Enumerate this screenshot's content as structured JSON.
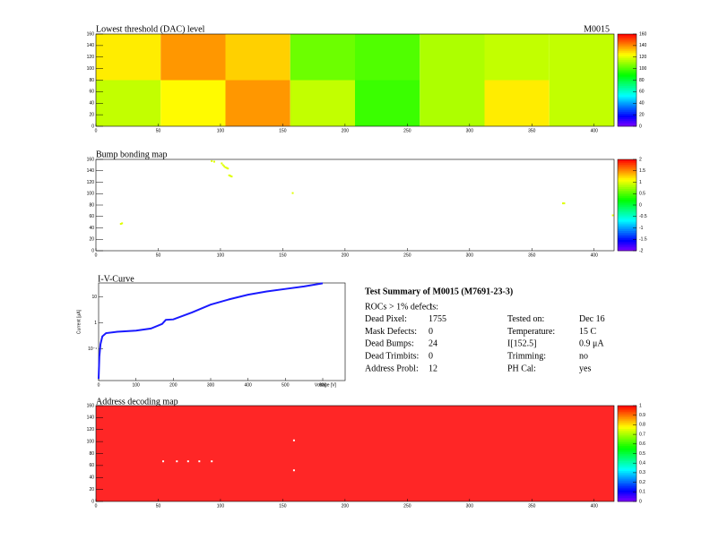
{
  "threshold_map": {
    "title": "Lowest threshold (DAC) level",
    "module": "M0015",
    "xlim": [
      0,
      416
    ],
    "xticks": [
      0,
      50,
      100,
      150,
      200,
      250,
      300,
      350,
      400
    ],
    "ylim": [
      0,
      160
    ],
    "yticks": [
      0,
      20,
      40,
      60,
      80,
      100,
      120,
      140,
      160
    ],
    "zlim": [
      0,
      160
    ],
    "zticks": [
      0,
      20,
      40,
      60,
      80,
      100,
      120,
      140,
      160
    ],
    "roc_values": [
      [
        127,
        139,
        131,
        104,
        100,
        113,
        116,
        116
      ],
      [
        116,
        125,
        139,
        116,
        97,
        113,
        127,
        116
      ]
    ]
  },
  "bump_map": {
    "title": "Bump bonding map",
    "xlim": [
      0,
      416
    ],
    "xticks": [
      0,
      50,
      100,
      150,
      200,
      250,
      300,
      350,
      400
    ],
    "ylim": [
      0,
      160
    ],
    "yticks": [
      0,
      20,
      40,
      60,
      80,
      100,
      120,
      140,
      160
    ],
    "zlim": [
      -2,
      2
    ],
    "zticks": [
      -2,
      -1.5,
      -1,
      -0.5,
      0,
      0.5,
      1,
      1.5,
      2
    ],
    "points": [
      {
        "x": 93,
        "y": 157,
        "z": 1
      },
      {
        "x": 95,
        "y": 156,
        "z": 1
      },
      {
        "x": 101,
        "y": 153,
        "z": 1
      },
      {
        "x": 102,
        "y": 150,
        "z": 1
      },
      {
        "x": 103,
        "y": 148,
        "z": 1
      },
      {
        "x": 104,
        "y": 146,
        "z": 1
      },
      {
        "x": 105,
        "y": 145,
        "z": 1
      },
      {
        "x": 106,
        "y": 144,
        "z": 1
      },
      {
        "x": 107,
        "y": 132,
        "z": 1
      },
      {
        "x": 108,
        "y": 131,
        "z": 1
      },
      {
        "x": 109,
        "y": 130,
        "z": 1
      },
      {
        "x": 158,
        "y": 101,
        "z": 1
      },
      {
        "x": 20,
        "y": 47,
        "z": 1
      },
      {
        "x": 21,
        "y": 48,
        "z": 1
      },
      {
        "x": 375,
        "y": 83,
        "z": 1
      },
      {
        "x": 376,
        "y": 83,
        "z": 1
      },
      {
        "x": 415,
        "y": 62,
        "z": 1
      }
    ]
  },
  "iv_curve": {
    "title": "I-V-Curve",
    "x_label": "Voltage [V]",
    "y_label": "Current [μA]",
    "color": "#1a1aff",
    "log_y": true,
    "xlim": [
      0,
      660
    ],
    "xticks": [
      0,
      100,
      200,
      300,
      400,
      500,
      600
    ],
    "ylim": [
      0.006,
      34
    ],
    "yticks": [
      {
        "value": 0.1,
        "label": "10⁻¹"
      },
      1,
      10
    ],
    "x": [
      0,
      2,
      5,
      10,
      20,
      50,
      100,
      140,
      170,
      180,
      200,
      250,
      300,
      350,
      400,
      450,
      500,
      550,
      600
    ],
    "values": [
      0.007,
      0.05,
      0.15,
      0.3,
      0.4,
      0.45,
      0.5,
      0.6,
      0.9,
      1.3,
      1.35,
      2.5,
      5,
      8,
      12,
      16,
      20,
      25,
      33
    ]
  },
  "summary": {
    "title": "Test Summary of M0015 (M7691-23-3)",
    "rows": [
      [
        "ROCs > 1% defects:",
        "1"
      ],
      [
        "Dead Pixel:",
        "1755",
        "Tested on:",
        "Dec 16"
      ],
      [
        "Mask Defects:",
        "0",
        "Temperature:",
        "15 C"
      ],
      [
        "Dead Bumps:",
        "24",
        "I[152.5]",
        "0.9 μA"
      ],
      [
        "Dead Trimbits:",
        "0",
        "Trimming:",
        "no"
      ],
      [
        "Address Probl:",
        "12",
        "PH Cal:",
        "yes"
      ]
    ]
  },
  "address_map": {
    "title": "Address decoding map",
    "xlim": [
      0,
      416
    ],
    "xticks": [
      0,
      50,
      100,
      150,
      200,
      250,
      300,
      350,
      400
    ],
    "ylim": [
      0,
      160
    ],
    "yticks": [
      0,
      20,
      40,
      60,
      80,
      100,
      120,
      140,
      160
    ],
    "zlim": [
      0,
      1
    ],
    "zticks": [
      0,
      0.1,
      0.2,
      0.3,
      0.4,
      0.5,
      0.6,
      0.7,
      0.8,
      0.9,
      1
    ],
    "default_value": 1,
    "defect_color": "#ffffff",
    "points": [
      {
        "x": 54,
        "y": 67
      },
      {
        "x": 65,
        "y": 67
      },
      {
        "x": 74,
        "y": 67
      },
      {
        "x": 83,
        "y": 67
      },
      {
        "x": 93,
        "y": 67
      },
      {
        "x": 159,
        "y": 102
      },
      {
        "x": 159,
        "y": 52
      }
    ]
  }
}
